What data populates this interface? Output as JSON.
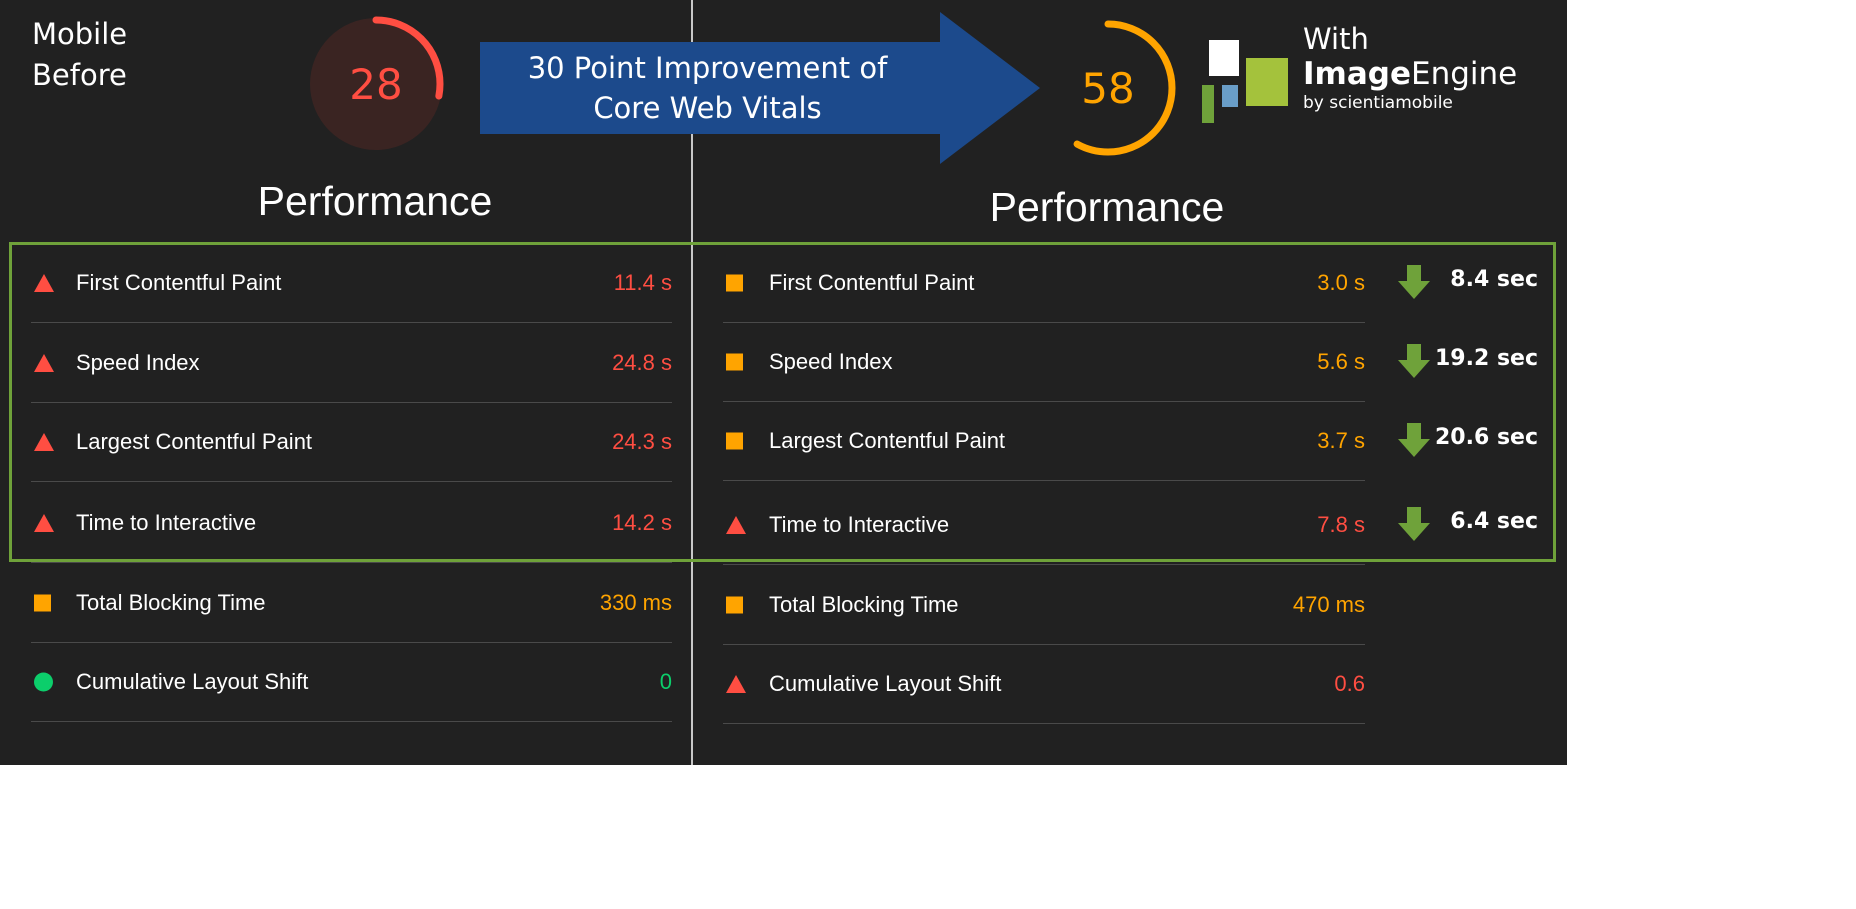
{
  "left": {
    "label_line1": "Mobile",
    "label_line2": "Before",
    "score": "28",
    "score_fraction": 0.28,
    "title": "Performance",
    "metrics": [
      {
        "label": "First Contentful Paint",
        "value": "11.4 s",
        "status": "fail"
      },
      {
        "label": "Speed Index",
        "value": "24.8 s",
        "status": "fail"
      },
      {
        "label": "Largest Contentful Paint",
        "value": "24.3 s",
        "status": "fail"
      },
      {
        "label": "Time to Interactive",
        "value": "14.2 s",
        "status": "fail"
      },
      {
        "label": "Total Blocking Time",
        "value": "330 ms",
        "status": "average"
      },
      {
        "label": "Cumulative Layout Shift",
        "value": "0",
        "status": "pass"
      }
    ]
  },
  "banner": {
    "line1": "30 Point Improvement of",
    "line2": "Core Web Vitals",
    "color": "#1c4a8c"
  },
  "logo": {
    "with": "With",
    "brand_bold": "Image",
    "brand_regular": "Engine",
    "by": "by scientiamobile"
  },
  "right": {
    "score": "58",
    "score_fraction": 0.58,
    "title": "Performance",
    "metrics": [
      {
        "label": "First Contentful Paint",
        "value": "3.0 s",
        "status": "average",
        "improvement": "8.4 sec"
      },
      {
        "label": "Speed Index",
        "value": "5.6 s",
        "status": "average",
        "improvement": "19.2 sec"
      },
      {
        "label": "Largest Contentful Paint",
        "value": "3.7 s",
        "status": "average",
        "improvement": "20.6 sec"
      },
      {
        "label": "Time to Interactive",
        "value": "7.8 s",
        "status": "fail",
        "improvement": "6.4 sec"
      },
      {
        "label": "Total Blocking Time",
        "value": "470 ms",
        "status": "average"
      },
      {
        "label": "Cumulative Layout Shift",
        "value": "0.6",
        "status": "fail"
      }
    ]
  },
  "colors": {
    "fail": "#ff4e42",
    "average": "#ffa400",
    "pass": "#0cce6b",
    "highlight": "#6fa23a",
    "background": "#212121"
  }
}
